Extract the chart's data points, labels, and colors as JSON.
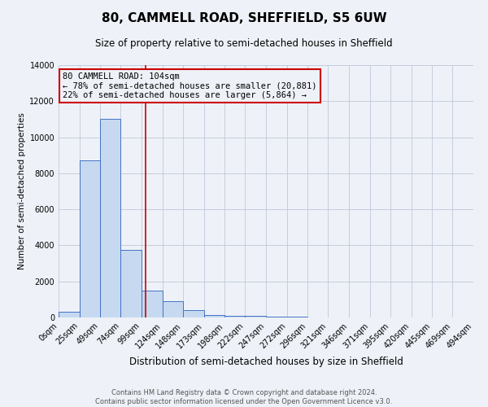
{
  "title": "80, CAMMELL ROAD, SHEFFIELD, S5 6UW",
  "subtitle": "Size of property relative to semi-detached houses in Sheffield",
  "xlabel": "Distribution of semi-detached houses by size in Sheffield",
  "ylabel": "Number of semi-detached properties",
  "bin_edges": [
    0,
    25,
    49,
    74,
    99,
    124,
    148,
    173,
    198,
    222,
    247,
    272,
    296,
    321,
    346,
    371,
    395,
    420,
    445,
    469,
    494
  ],
  "bar_heights": [
    300,
    8700,
    11000,
    3750,
    1500,
    900,
    400,
    130,
    100,
    80,
    60,
    40,
    20,
    10,
    5,
    5,
    5,
    5,
    5,
    5
  ],
  "bar_color": "#c6d9f0",
  "bar_edge_color": "#4472c4",
  "grid_color": "#c0c8d8",
  "background_color": "#eef2f8",
  "vline_x": 104,
  "vline_color": "#cc0000",
  "annotation_box_color": "#cc0000",
  "annotation_title": "80 CAMMELL ROAD: 104sqm",
  "annotation_line1": "← 78% of semi-detached houses are smaller (20,881)",
  "annotation_line2": "22% of semi-detached houses are larger (5,864) →",
  "ylim": [
    0,
    14000
  ],
  "tick_labels": [
    "0sqm",
    "25sqm",
    "49sqm",
    "74sqm",
    "99sqm",
    "124sqm",
    "148sqm",
    "173sqm",
    "198sqm",
    "222sqm",
    "247sqm",
    "272sqm",
    "296sqm",
    "321sqm",
    "346sqm",
    "371sqm",
    "395sqm",
    "420sqm",
    "445sqm",
    "469sqm",
    "494sqm"
  ],
  "footer_line1": "Contains HM Land Registry data © Crown copyright and database right 2024.",
  "footer_line2": "Contains public sector information licensed under the Open Government Licence v3.0.",
  "title_fontsize": 11,
  "subtitle_fontsize": 8.5,
  "xlabel_fontsize": 8.5,
  "ylabel_fontsize": 7.5,
  "tick_fontsize": 7,
  "footer_fontsize": 6,
  "annotation_fontsize": 7.5
}
